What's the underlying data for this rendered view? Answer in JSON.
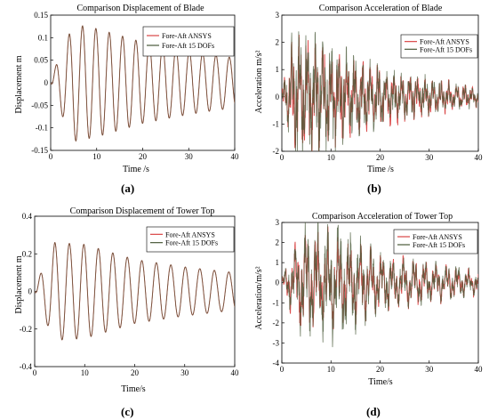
{
  "colors": {
    "ansys": "#d94545",
    "dof15": "#4a5a3a",
    "axis": "#000000",
    "legend_border": "#000000"
  },
  "chart_data": [
    {
      "id": "a",
      "type": "line",
      "caption": "(a)",
      "title": "Comparison Displacement of Blade",
      "xlabel": "Time /s",
      "ylabel": "Displacement m",
      "xlim": [
        0,
        40
      ],
      "ylim": [
        -0.15,
        0.15
      ],
      "xticks": [
        "0",
        "10",
        "20",
        "30",
        "40"
      ],
      "xtick_values": [
        0,
        10,
        20,
        30,
        40
      ],
      "yticks": [
        "-0.15",
        "-0.1",
        "-0.05",
        "0",
        "0.05",
        "0.1",
        "0.15"
      ],
      "ytick_values": [
        -0.15,
        -0.1,
        -0.05,
        0,
        0.05,
        0.1,
        0.15
      ],
      "legend": "top-right",
      "series": [
        {
          "name": "Fore-Aft ANSYS",
          "color": "#d94545",
          "period": 2.9,
          "envelope": [
            [
              0,
              0.0
            ],
            [
              1.5,
              0.05
            ],
            [
              5,
              0.13
            ],
            [
              10,
              0.12
            ],
            [
              20,
              0.09
            ],
            [
              30,
              0.07
            ],
            [
              40,
              0.055
            ]
          ],
          "decay": 0.0,
          "noise": 0.0
        },
        {
          "name": "Fore-Aft 15 DOFs",
          "color": "#4a5a3a",
          "period": 2.9,
          "envelope": [
            [
              0,
              0.0
            ],
            [
              1.5,
              0.05
            ],
            [
              5,
              0.13
            ],
            [
              10,
              0.12
            ],
            [
              20,
              0.09
            ],
            [
              30,
              0.07
            ],
            [
              40,
              0.055
            ]
          ],
          "decay": 0.0,
          "noise": 0.0
        }
      ]
    },
    {
      "id": "b",
      "type": "line",
      "caption": "(b)",
      "title": "Comparison Acceleration of Blade",
      "xlabel": "Time /s",
      "ylabel": "Acceleration m/s²",
      "xlim": [
        0,
        40
      ],
      "ylim": [
        -2,
        3
      ],
      "xticks": [
        "0",
        "10",
        "20",
        "30",
        "40"
      ],
      "xtick_values": [
        0,
        10,
        20,
        30,
        40
      ],
      "yticks": [
        "-2",
        "-1",
        "0",
        "1",
        "2",
        "3"
      ],
      "ytick_values": [
        -2,
        -1,
        0,
        1,
        2,
        3
      ],
      "legend": "top-right",
      "series": [
        {
          "name": "Fore-Aft ANSYS",
          "color": "#d94545",
          "period": 1.6,
          "envelope": [
            [
              0,
              0.3
            ],
            [
              3,
              2.0
            ],
            [
              10,
              1.5
            ],
            [
              20,
              0.9
            ],
            [
              30,
              0.55
            ],
            [
              40,
              0.3
            ]
          ],
          "noise": 0.9
        },
        {
          "name": "Fore-Aft 15 DOFs",
          "color": "#4a5a3a",
          "period": 1.6,
          "envelope": [
            [
              0,
              0.3
            ],
            [
              3,
              2.3
            ],
            [
              10,
              1.6
            ],
            [
              20,
              0.9
            ],
            [
              30,
              0.55
            ],
            [
              40,
              0.3
            ]
          ],
          "noise": 1.0
        }
      ]
    },
    {
      "id": "c",
      "type": "line",
      "caption": "(c)",
      "title": "Comparison Displacement of Tower Top",
      "xlabel": "Time/s",
      "ylabel": "Displacement m",
      "xlim": [
        0,
        40
      ],
      "ylim": [
        -0.4,
        0.4
      ],
      "xticks": [
        "0",
        "10",
        "20",
        "30",
        "40"
      ],
      "xtick_values": [
        0,
        10,
        20,
        30,
        40
      ],
      "yticks": [
        "-0.4",
        "-0.2",
        "0",
        "0.2",
        "0.4"
      ],
      "ytick_values": [
        -0.4,
        -0.2,
        0,
        0.2,
        0.4
      ],
      "legend": "top-right",
      "series": [
        {
          "name": "Fore-Aft ANSYS",
          "color": "#d94545",
          "period": 2.9,
          "envelope": [
            [
              0,
              0.0
            ],
            [
              1.5,
              0.12
            ],
            [
              4,
              0.26
            ],
            [
              10,
              0.25
            ],
            [
              20,
              0.17
            ],
            [
              30,
              0.13
            ],
            [
              40,
              0.1
            ]
          ],
          "noise": 0.0
        },
        {
          "name": "Fore-Aft 15 DOFs",
          "color": "#4a5a3a",
          "period": 2.9,
          "envelope": [
            [
              0,
              0.0
            ],
            [
              1.5,
              0.12
            ],
            [
              4,
              0.26
            ],
            [
              10,
              0.25
            ],
            [
              20,
              0.17
            ],
            [
              30,
              0.13
            ],
            [
              40,
              0.1
            ]
          ],
          "noise": 0.0
        }
      ]
    },
    {
      "id": "d",
      "type": "line",
      "caption": "(d)",
      "title": "Comparison Acceleration of Tower Top",
      "xlabel": "Time/s",
      "ylabel": "Acceleration/m/s²",
      "xlim": [
        0,
        40
      ],
      "ylim": [
        -4,
        3
      ],
      "xticks": [
        "0",
        "10",
        "20",
        "30",
        "40"
      ],
      "xtick_values": [
        0,
        10,
        20,
        30,
        40
      ],
      "yticks": [
        "-4",
        "-3",
        "-2",
        "-1",
        "0",
        "1",
        "2",
        "3"
      ],
      "ytick_values": [
        -4,
        -3,
        -2,
        -1,
        0,
        1,
        2,
        3
      ],
      "legend": "top-right",
      "series": [
        {
          "name": "Fore-Aft ANSYS",
          "color": "#d94545",
          "period": 2.2,
          "envelope": [
            [
              0,
              0.3
            ],
            [
              4,
              2.2
            ],
            [
              11,
              2.0
            ],
            [
              20,
              1.2
            ],
            [
              30,
              0.9
            ],
            [
              40,
              0.5
            ]
          ],
          "noise": 0.8
        },
        {
          "name": "Fore-Aft 15 DOFs",
          "color": "#4a5a3a",
          "period": 2.2,
          "envelope": [
            [
              0,
              0.3
            ],
            [
              4,
              2.4
            ],
            [
              11,
              2.6
            ],
            [
              20,
              1.2
            ],
            [
              30,
              0.9
            ],
            [
              40,
              0.5
            ]
          ],
          "noise": 0.9
        }
      ]
    }
  ]
}
